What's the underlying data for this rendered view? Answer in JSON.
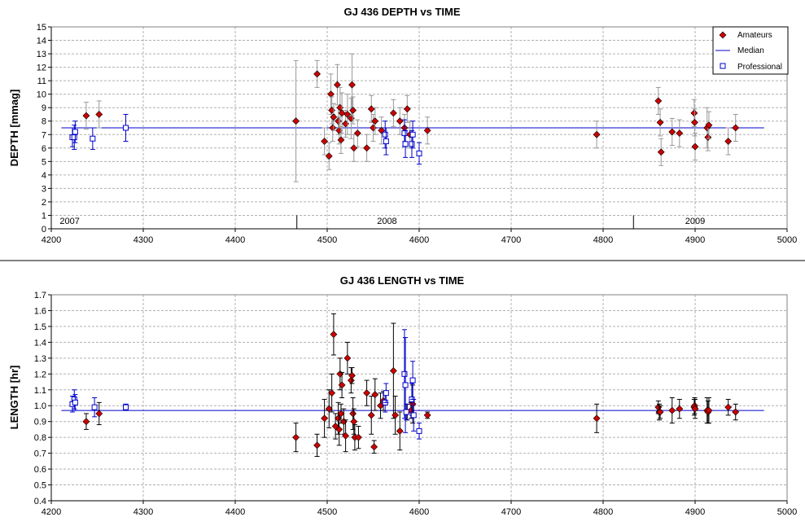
{
  "colors": {
    "amateur": "#cc0000",
    "professional": "#0000cc",
    "median": "#0000cc",
    "grid": "#b0b0b0",
    "separator": "#000000"
  },
  "chart_data": [
    {
      "type": "scatter",
      "title": "GJ 436 DEPTH vs TIME",
      "ylabel": "DEPTH [mmag]",
      "xlabel": "",
      "xlim": [
        4200,
        5000
      ],
      "ylim": [
        0,
        15
      ],
      "xticks": [
        "4200",
        "4300",
        "4400",
        "4500",
        "4600",
        "4700",
        "4800",
        "4900",
        "5000"
      ],
      "yticks": [
        "0",
        "1",
        "2",
        "3",
        "4",
        "5",
        "6",
        "7",
        "8",
        "9",
        "10",
        "11",
        "12",
        "13",
        "14",
        "15"
      ],
      "grid": true,
      "legend": {
        "placement": "top-right",
        "entries": [
          "Amateurs",
          "Median",
          "Professional"
        ]
      },
      "median": 7.5,
      "year_labels": [
        {
          "x": 4220,
          "label": "2007"
        },
        {
          "x": 4565,
          "label": "2008"
        },
        {
          "x": 4900,
          "label": "2009"
        }
      ],
      "year_separators": [
        4467,
        4833
      ],
      "series": [
        {
          "name": "Amateurs",
          "marker": "diamond",
          "points": [
            [
              4238,
              8.4,
              1.0
            ],
            [
              4252,
              8.5,
              1.0
            ],
            [
              4466,
              8.0,
              4.5
            ],
            [
              4489,
              11.5,
              1.0
            ],
            [
              4497,
              6.5,
              1.0
            ],
            [
              4502,
              5.4,
              1.0
            ],
            [
              4504,
              10.0,
              1.5
            ],
            [
              4505,
              8.8,
              1.0
            ],
            [
              4506,
              7.5,
              1.0
            ],
            [
              4507,
              8.3,
              1.0
            ],
            [
              4511,
              10.7,
              1.5
            ],
            [
              4512,
              8.0,
              1.0
            ],
            [
              4513,
              7.3,
              1.0
            ],
            [
              4514,
              9.0,
              1.5
            ],
            [
              4515,
              6.6,
              1.0
            ],
            [
              4516,
              8.6,
              1.5
            ],
            [
              4520,
              7.8,
              1.0
            ],
            [
              4522,
              8.5,
              1.5
            ],
            [
              4526,
              8.2,
              1.5
            ],
            [
              4527,
              10.7,
              2.3
            ],
            [
              4528,
              8.8,
              1.0
            ],
            [
              4529,
              6.0,
              1.0
            ],
            [
              4533,
              7.1,
              1.0
            ],
            [
              4543,
              6.0,
              1.0
            ],
            [
              4548,
              8.9,
              1.0
            ],
            [
              4550,
              7.5,
              1.0
            ],
            [
              4552,
              8.0,
              1.0
            ],
            [
              4559,
              7.3,
              1.0
            ],
            [
              4572,
              8.6,
              1.0
            ],
            [
              4579,
              8.0,
              1.0
            ],
            [
              4584,
              7.5,
              1.0
            ],
            [
              4587,
              8.9,
              1.0
            ],
            [
              4590,
              7.0,
              1.0
            ],
            [
              4609,
              7.3,
              1.0
            ],
            [
              4793,
              7.0,
              1.0
            ],
            [
              4860,
              9.5,
              1.0
            ],
            [
              4862,
              7.9,
              1.0
            ],
            [
              4863,
              5.7,
              1.0
            ],
            [
              4875,
              7.2,
              1.0
            ],
            [
              4883,
              7.1,
              1.0
            ],
            [
              4899,
              8.6,
              1.0
            ],
            [
              4899.5,
              7.9,
              1.0
            ],
            [
              4900,
              6.1,
              1.0
            ],
            [
              4913,
              7.5,
              1.5
            ],
            [
              4914,
              6.8,
              1.0
            ],
            [
              4915,
              7.7,
              1.0
            ],
            [
              4936,
              6.5,
              1.0
            ],
            [
              4944,
              7.5,
              1.0
            ]
          ]
        },
        {
          "name": "Professional",
          "marker": "square",
          "points": [
            [
              4223,
              6.8,
              0.7
            ],
            [
              4225,
              6.8,
              0.9
            ],
            [
              4226,
              7.2,
              0.8
            ],
            [
              4245,
              6.7,
              0.8
            ],
            [
              4281,
              7.5,
              1.0
            ],
            [
              4563,
              7.0,
              1.0
            ],
            [
              4564,
              6.5,
              1.0
            ],
            [
              4584,
              7.1,
              1.0
            ],
            [
              4585,
              6.3,
              1.0
            ],
            [
              4592,
              6.3,
              1.0
            ],
            [
              4593,
              7.0,
              1.0
            ],
            [
              4600,
              5.6,
              0.8
            ]
          ]
        }
      ]
    },
    {
      "type": "scatter",
      "title": "GJ 436 LENGTH vs TIME",
      "ylabel": "LENGTH [hr]",
      "xlabel": "",
      "xlim": [
        4200,
        5000
      ],
      "ylim": [
        0.4,
        1.7
      ],
      "xticks": [
        "4200",
        "4300",
        "4400",
        "4500",
        "4600",
        "4700",
        "4800",
        "4900",
        "5000"
      ],
      "yticks": [
        "0.4",
        "0.5",
        "0.6",
        "0.7",
        "0.8",
        "0.9",
        "1.0",
        "1.1",
        "1.2",
        "1.3",
        "1.4",
        "1.5",
        "1.6",
        "1.7"
      ],
      "grid": true,
      "median": 0.97,
      "series": [
        {
          "name": "Amateurs",
          "marker": "diamond",
          "points": [
            [
              4238,
              0.9,
              0.05
            ],
            [
              4252,
              0.95,
              0.07
            ],
            [
              4466,
              0.8,
              0.09
            ],
            [
              4489,
              0.75,
              0.07
            ],
            [
              4497,
              0.92,
              0.12
            ],
            [
              4502,
              0.98,
              0.12
            ],
            [
              4505,
              1.08,
              0.12
            ],
            [
              4507,
              1.45,
              0.13
            ],
            [
              4509,
              0.87,
              0.08
            ],
            [
              4512,
              0.92,
              0.1
            ],
            [
              4513,
              0.85,
              0.1
            ],
            [
              4514,
              1.2,
              0.1
            ],
            [
              4515,
              0.95,
              0.06
            ],
            [
              4516,
              1.13,
              0.08
            ],
            [
              4518,
              0.9,
              0.08
            ],
            [
              4520,
              0.81,
              0.1
            ],
            [
              4522,
              1.3,
              0.1
            ],
            [
              4526,
              1.16,
              0.08
            ],
            [
              4527,
              1.19,
              0.05
            ],
            [
              4528,
              0.95,
              0.1
            ],
            [
              4529,
              0.9,
              0.08
            ],
            [
              4530,
              0.8,
              0.08
            ],
            [
              4534,
              0.8,
              0.07
            ],
            [
              4543,
              1.08,
              0.08
            ],
            [
              4548,
              0.94,
              0.12
            ],
            [
              4551,
              0.74,
              0.04
            ],
            [
              4552,
              1.07,
              0.1
            ],
            [
              4558,
              1.0,
              0.08
            ],
            [
              4561,
              1.03,
              0.06
            ],
            [
              4572,
              1.22,
              0.3
            ],
            [
              4574,
              0.94,
              0.12
            ],
            [
              4579,
              0.84,
              0.12
            ],
            [
              4587,
              0.96,
              0.05
            ],
            [
              4591,
              0.97,
              0.05
            ],
            [
              4593,
              1.01,
              0.12
            ],
            [
              4609,
              0.94,
              0.02
            ],
            [
              4793,
              0.92,
              0.09
            ],
            [
              4860,
              0.99,
              0.04
            ],
            [
              4861,
              0.96,
              0.05
            ],
            [
              4862,
              0.96,
              0.04
            ],
            [
              4875,
              0.97,
              0.08
            ],
            [
              4883,
              0.98,
              0.06
            ],
            [
              4899,
              0.99,
              0.05
            ],
            [
              4899.5,
              1.0,
              0.05
            ],
            [
              4900,
              0.98,
              0.06
            ],
            [
              4913,
              0.97,
              0.08
            ],
            [
              4914,
              0.96,
              0.07
            ],
            [
              4915,
              0.97,
              0.08
            ],
            [
              4936,
              0.99,
              0.05
            ],
            [
              4944,
              0.96,
              0.05
            ]
          ]
        },
        {
          "name": "Professional",
          "marker": "square",
          "points": [
            [
              4223,
              1.01,
              0.05
            ],
            [
              4225,
              1.04,
              0.06
            ],
            [
              4226,
              1.02,
              0.05
            ],
            [
              4247,
              0.99,
              0.06
            ],
            [
              4281,
              0.99,
              0.02
            ],
            [
              4563,
              1.02,
              0.06
            ],
            [
              4564,
              1.08,
              0.06
            ],
            [
              4584,
              1.2,
              0.28
            ],
            [
              4585,
              1.13,
              0.3
            ],
            [
              4586,
              0.96,
              0.05
            ],
            [
              4592,
              1.04,
              0.1
            ],
            [
              4593,
              1.16,
              0.12
            ],
            [
              4594,
              0.94,
              0.1
            ],
            [
              4600,
              0.84,
              0.05
            ]
          ]
        }
      ]
    }
  ]
}
